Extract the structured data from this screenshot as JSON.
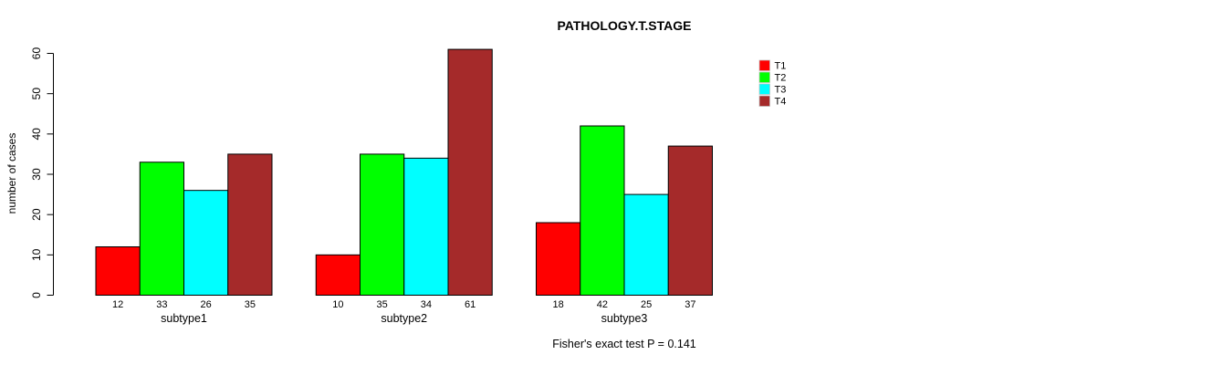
{
  "chart_data": {
    "type": "bar",
    "title": "PATHOLOGY.T.STAGE",
    "ylabel": "number of cases",
    "footer": "Fisher's exact test P = 0.141",
    "ylim": [
      0,
      60
    ],
    "yticks": [
      0,
      10,
      20,
      30,
      40,
      50,
      60
    ],
    "categories": [
      "subtype1",
      "subtype2",
      "subtype3"
    ],
    "series": [
      {
        "name": "T1",
        "color": "#ff0000",
        "values": [
          12,
          10,
          18
        ]
      },
      {
        "name": "T2",
        "color": "#00ff00",
        "values": [
          33,
          35,
          42
        ]
      },
      {
        "name": "T3",
        "color": "#00ffff",
        "values": [
          26,
          34,
          25
        ]
      },
      {
        "name": "T4",
        "color": "#a52a2a",
        "values": [
          35,
          61,
          37
        ]
      }
    ],
    "bar_border_color": "#000000",
    "axis_color": "#000000",
    "legend_position": "right",
    "legend_labels": [
      "T1",
      "T2",
      "T3",
      "T4"
    ],
    "show_value_labels": true,
    "grid": false
  }
}
